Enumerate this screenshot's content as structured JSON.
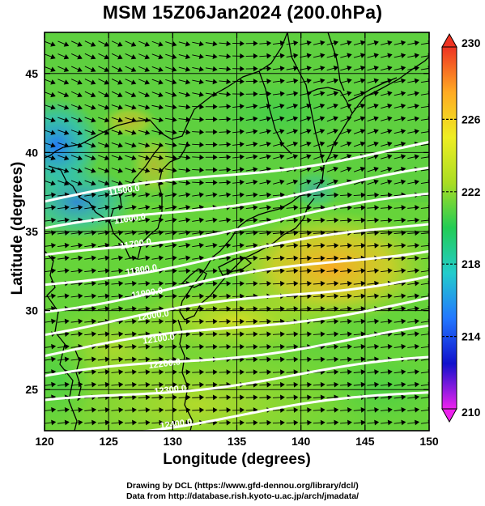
{
  "title": "MSM 15Z06Jan2024 (200.0hPa)",
  "xlabel": "Longitude (degrees)",
  "ylabel": "Latitude  (degrees)",
  "credit_line1": "Drawing by DCL (https://www.gfd-dennou.org/library/dcl/)",
  "credit_line2": "Data from http://database.rish.kyoto-u.ac.jp/arch/jmadata/",
  "map": {
    "lon_range": [
      120,
      150
    ],
    "lat_range": [
      22.4,
      47.6
    ],
    "lon_ticks": [
      120,
      125,
      130,
      135,
      140,
      145,
      150
    ],
    "lat_ticks": [
      25,
      30,
      35,
      40,
      45
    ],
    "colorbar": {
      "range": [
        210,
        230
      ],
      "ticks": [
        210,
        214,
        218,
        222,
        226,
        230
      ],
      "stops": [
        "#ee22ee",
        "#1111cc",
        "#2277ff",
        "#22cccc",
        "#22cc55",
        "#aadd22",
        "#eeee22",
        "#ffaa22",
        "#ee3322"
      ]
    },
    "geopotential_contours": [
      {
        "label": "11500.0",
        "lat_at_120": 36.9,
        "lat_at_150": 40.5
      },
      {
        "label": "11600.0",
        "lat_at_120": 35.0,
        "lat_at_150": 38.8
      },
      {
        "label": "11700.0",
        "lat_at_120": 33.3,
        "lat_at_150": 37.3
      },
      {
        "label": "11800.0",
        "lat_at_120": 31.6,
        "lat_at_150": 35.6
      },
      {
        "label": "11900.0",
        "lat_at_120": 30.1,
        "lat_at_150": 34.0
      },
      {
        "label": "12000.0",
        "lat_at_120": 28.7,
        "lat_at_150": 32.3
      },
      {
        "label": "12100.0",
        "lat_at_120": 27.2,
        "lat_at_150": 30.7
      },
      {
        "label": "12200.0",
        "lat_at_120": 25.7,
        "lat_at_150": 28.8
      },
      {
        "label": "12300.0",
        "lat_at_120": 24.1,
        "lat_at_150": 26.9
      },
      {
        "label": "12400.0",
        "lat_at_120": 21.8,
        "lat_at_150": 24.9
      }
    ]
  }
}
